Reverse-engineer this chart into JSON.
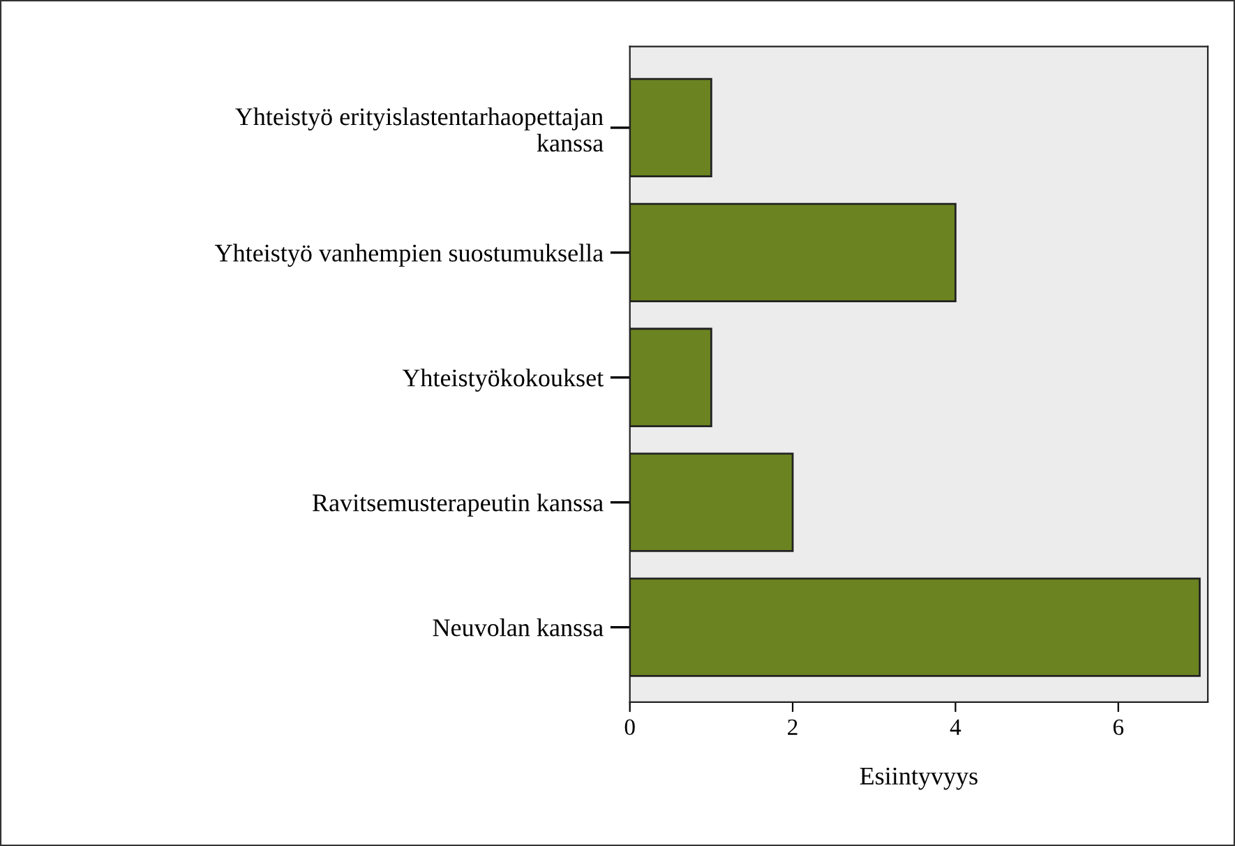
{
  "chart_data": {
    "type": "bar",
    "orientation": "horizontal",
    "xlabel": "Esiintyvyys",
    "categories": [
      "Yhteistyö erityislastentarhaopettajan\nkanssa",
      "Yhteistyö vanhempien suostumuksella",
      "Yhteistyökokoukset",
      "Ravitsemusterapeutin kanssa",
      "Neuvolan kanssa"
    ],
    "values": [
      1,
      4,
      1,
      2,
      7
    ],
    "color": "#6b8421",
    "xlim": [
      0,
      7.1
    ],
    "xticks": [
      0,
      2,
      4,
      6
    ],
    "grid": false,
    "legend": false
  }
}
